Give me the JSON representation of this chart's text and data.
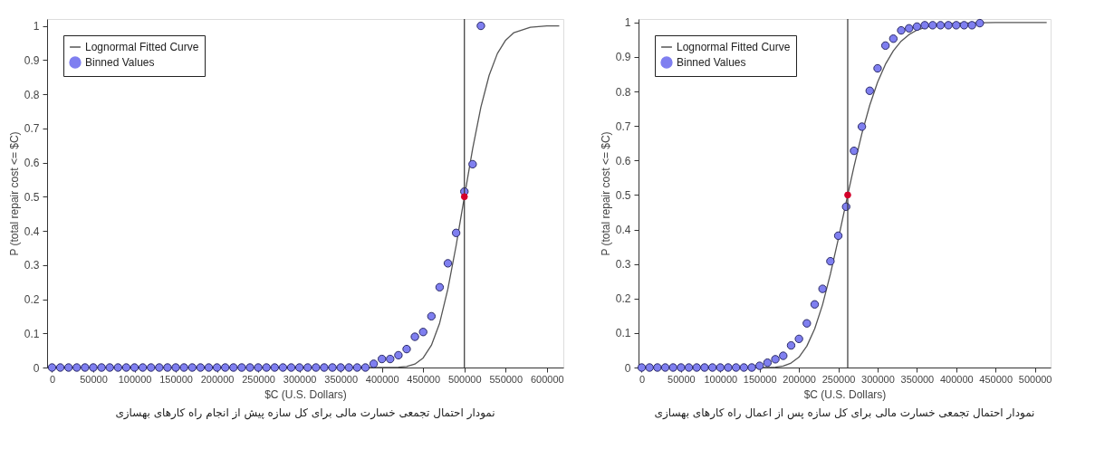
{
  "chart_data": [
    {
      "type": "scatter",
      "xlabel": "$C (U.S. Dollars)",
      "ylabel": "P (total repair cost <= $C)",
      "annotations": [
        "نمودار احتمال تجمعی خسارت مالی برای کل سازه پیش از انجام راه کارهای بهسازی"
      ],
      "xlim": [
        -6000,
        620000
      ],
      "xticks": [
        0,
        50000,
        100000,
        150000,
        200000,
        250000,
        300000,
        350000,
        400000,
        450000,
        500000,
        550000,
        600000
      ],
      "ylim": [
        0,
        1.02
      ],
      "yticks": [
        0,
        0.1,
        0.2,
        0.3,
        0.4,
        0.5,
        0.6,
        0.7,
        0.8,
        0.9,
        1
      ],
      "grid": false,
      "legend": "top left",
      "line_style": "solid",
      "ref_lines": [
        {
          "axis": "x",
          "value": 500000,
          "color": "#333333"
        }
      ],
      "series": [
        {
          "name": "Lognormal Fitted Curve",
          "type": "line",
          "color": "#555555",
          "x": [
            0,
            380000,
            420000,
            430000,
            440000,
            450000,
            460000,
            470000,
            480000,
            490000,
            500000,
            510000,
            520000,
            530000,
            540000,
            550000,
            560000,
            580000,
            600000,
            615000
          ],
          "values": [
            0,
            0,
            0.001,
            0.003,
            0.01,
            0.028,
            0.065,
            0.13,
            0.23,
            0.357,
            0.5,
            0.64,
            0.762,
            0.855,
            0.919,
            0.958,
            0.98,
            0.996,
            1,
            1
          ]
        },
        {
          "name": "Binned Values",
          "marker": "circle",
          "color": "#7f7ff0",
          "x": [
            0,
            10000,
            20000,
            30000,
            40000,
            50000,
            60000,
            70000,
            80000,
            90000,
            100000,
            110000,
            120000,
            130000,
            140000,
            150000,
            160000,
            170000,
            180000,
            190000,
            200000,
            210000,
            220000,
            230000,
            240000,
            250000,
            260000,
            270000,
            280000,
            290000,
            300000,
            310000,
            320000,
            330000,
            340000,
            350000,
            360000,
            370000,
            380000,
            390000,
            400000,
            410000,
            420000,
            430000,
            440000,
            450000,
            460000,
            470000,
            480000,
            490000,
            500000,
            510000,
            520000
          ],
          "values": [
            0,
            0,
            0,
            0,
            0,
            0,
            0,
            0,
            0,
            0,
            0,
            0,
            0,
            0,
            0,
            0,
            0,
            0,
            0,
            0,
            0,
            0,
            0,
            0,
            0,
            0,
            0,
            0,
            0,
            0,
            0,
            0,
            0,
            0,
            0,
            0,
            0,
            0,
            0,
            0.011,
            0.025,
            0.025,
            0.036,
            0.054,
            0.09,
            0.104,
            0.15,
            0.235,
            0.305,
            0.394,
            0.515,
            0.595,
            1
          ]
        },
        {
          "marker": "circle",
          "color": "#d4002a",
          "x": [
            500000
          ],
          "values": [
            0.5
          ]
        }
      ]
    },
    {
      "type": "scatter",
      "xlabel": "$C (U.S. Dollars)",
      "ylabel": "P (total repair cost <= $C)",
      "annotations": [
        "نمودار احتمال تجمعی خسارت مالی برای کل سازه پس از اعمال راه کارهای بهسازی"
      ],
      "xlim": [
        -4000,
        520000
      ],
      "xticks": [
        0,
        50000,
        100000,
        150000,
        200000,
        250000,
        300000,
        350000,
        400000,
        450000,
        500000
      ],
      "ylim": [
        0,
        1.01
      ],
      "yticks": [
        0,
        0.1,
        0.2,
        0.3,
        0.4,
        0.5,
        0.6,
        0.7,
        0.8,
        0.9,
        1
      ],
      "grid": false,
      "legend": "top left",
      "line_style": "solid",
      "ref_lines": [
        {
          "axis": "x",
          "value": 262000,
          "color": "#333333"
        }
      ],
      "series": [
        {
          "name": "Lognormal Fitted Curve",
          "type": "line",
          "color": "#555555",
          "x": [
            0,
            150000,
            170000,
            180000,
            190000,
            200000,
            210000,
            220000,
            230000,
            240000,
            250000,
            262000,
            270000,
            280000,
            290000,
            300000,
            310000,
            320000,
            330000,
            340000,
            350000,
            370000,
            400000,
            450000,
            515000
          ],
          "values": [
            0,
            0,
            0.001,
            0.004,
            0.013,
            0.03,
            0.062,
            0.112,
            0.182,
            0.271,
            0.372,
            0.5,
            0.583,
            0.678,
            0.76,
            0.827,
            0.879,
            0.918,
            0.946,
            0.965,
            0.978,
            0.992,
            0.998,
            1,
            1
          ]
        },
        {
          "name": "Binned Values",
          "marker": "circle",
          "color": "#7f7ff0",
          "x": [
            0,
            10000,
            20000,
            30000,
            40000,
            50000,
            60000,
            70000,
            80000,
            90000,
            100000,
            110000,
            120000,
            130000,
            140000,
            150000,
            160000,
            170000,
            180000,
            190000,
            200000,
            210000,
            220000,
            230000,
            240000,
            250000,
            260000,
            270000,
            280000,
            290000,
            300000,
            310000,
            320000,
            330000,
            340000,
            350000,
            360000,
            370000,
            380000,
            390000,
            400000,
            410000,
            420000,
            430000
          ],
          "values": [
            0,
            0,
            0,
            0,
            0,
            0,
            0,
            0,
            0,
            0,
            0,
            0,
            0,
            0,
            0,
            0.005,
            0.014,
            0.024,
            0.034,
            0.064,
            0.083,
            0.128,
            0.183,
            0.228,
            0.308,
            0.382,
            0.466,
            0.628,
            0.698,
            0.802,
            0.867,
            0.933,
            0.953,
            0.977,
            0.983,
            0.988,
            0.992,
            0.992,
            0.992,
            0.992,
            0.992,
            0.992,
            0.992,
            0.998
          ]
        },
        {
          "marker": "circle",
          "color": "#d4002a",
          "x": [
            262000
          ],
          "values": [
            0.5
          ]
        }
      ]
    }
  ]
}
